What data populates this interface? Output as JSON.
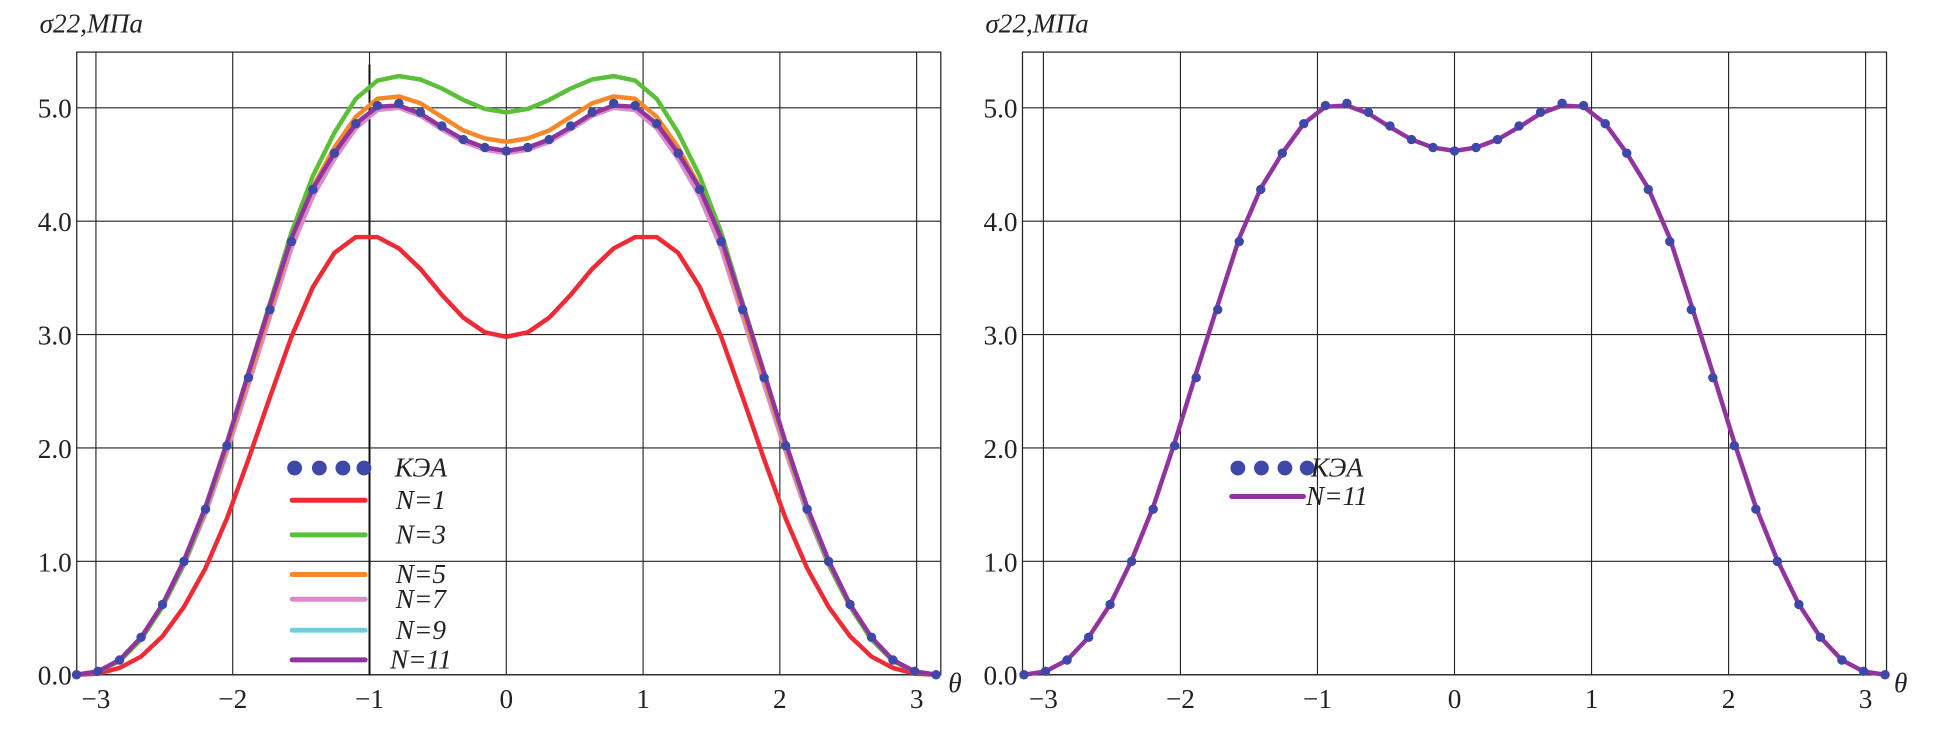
{
  "chart_data": [
    {
      "type": "line",
      "ylabel": "σ22,МПа",
      "xlabel": "θ",
      "xlim": [
        -3.1416,
        3.1416
      ],
      "ylim": [
        0,
        5.5
      ],
      "xticks": [
        "−3",
        "−2",
        "−1",
        "0",
        "1",
        "2",
        "3"
      ],
      "xtick_values": [
        -3,
        -2,
        -1,
        0,
        1,
        2,
        3
      ],
      "yticks": [
        "0.0",
        "1.0",
        "2.0",
        "3.0",
        "4.0",
        "5.0"
      ],
      "ytick_values": [
        0,
        1,
        2,
        3,
        4,
        5
      ],
      "grid": true,
      "legend_position": "lower-left",
      "x": [
        -3.142,
        -2.985,
        -2.827,
        -2.67,
        -2.513,
        -2.356,
        -2.199,
        -2.042,
        -1.885,
        -1.728,
        -1.571,
        -1.414,
        -1.257,
        -1.1,
        -0.942,
        -0.785,
        -0.628,
        -0.471,
        -0.314,
        -0.157,
        0,
        0.157,
        0.314,
        0.471,
        0.628,
        0.785,
        0.942,
        1.1,
        1.257,
        1.414,
        1.571,
        1.728,
        1.885,
        2.042,
        2.199,
        2.356,
        2.513,
        2.67,
        2.827,
        2.985,
        3.142
      ],
      "series": [
        {
          "name": "N=1",
          "style": "line",
          "color": "#ee2a35",
          "values": [
            0,
            0.01,
            0.06,
            0.16,
            0.34,
            0.6,
            0.94,
            1.38,
            1.9,
            2.45,
            2.98,
            3.42,
            3.72,
            3.86,
            3.86,
            3.76,
            3.58,
            3.35,
            3.15,
            3.02,
            2.98,
            3.02,
            3.15,
            3.35,
            3.58,
            3.76,
            3.86,
            3.86,
            3.72,
            3.42,
            2.98,
            2.45,
            1.9,
            1.38,
            0.94,
            0.6,
            0.34,
            0.16,
            0.06,
            0.01,
            0
          ]
        },
        {
          "name": "N=9",
          "style": "line",
          "color": "#6ccfdc",
          "values": [
            0,
            0.03,
            0.13,
            0.32,
            0.61,
            0.98,
            1.43,
            1.98,
            2.57,
            3.17,
            3.77,
            4.23,
            4.56,
            4.83,
            4.99,
            5.01,
            4.94,
            4.82,
            4.71,
            4.65,
            4.62,
            4.65,
            4.71,
            4.82,
            4.94,
            5.01,
            4.99,
            4.83,
            4.56,
            4.23,
            3.77,
            3.17,
            2.57,
            1.98,
            1.43,
            0.98,
            0.61,
            0.32,
            0.13,
            0.03,
            0
          ]
        },
        {
          "name": "N=7",
          "style": "line",
          "color": "#d98bcb",
          "values": [
            0,
            0.03,
            0.12,
            0.32,
            0.6,
            0.97,
            1.42,
            1.97,
            2.56,
            3.16,
            3.76,
            4.22,
            4.55,
            4.82,
            4.98,
            5.0,
            4.93,
            4.81,
            4.7,
            4.63,
            4.6,
            4.63,
            4.7,
            4.81,
            4.93,
            5.0,
            4.98,
            4.82,
            4.55,
            4.22,
            3.76,
            3.16,
            2.56,
            1.97,
            1.42,
            0.97,
            0.6,
            0.32,
            0.12,
            0.03,
            0
          ]
        },
        {
          "name": "N=5",
          "style": "line",
          "color": "#f5892a",
          "values": [
            0,
            0.03,
            0.13,
            0.33,
            0.62,
            1.0,
            1.46,
            2.02,
            2.62,
            3.22,
            3.84,
            4.3,
            4.65,
            4.92,
            5.08,
            5.1,
            5.04,
            4.92,
            4.8,
            4.73,
            4.7,
            4.73,
            4.8,
            4.92,
            5.04,
            5.1,
            5.08,
            4.92,
            4.65,
            4.3,
            3.84,
            3.22,
            2.62,
            2.02,
            1.46,
            1.0,
            0.62,
            0.33,
            0.13,
            0.03,
            0
          ]
        },
        {
          "name": "N=3",
          "style": "line",
          "color": "#5cbf3a",
          "values": [
            0,
            0.03,
            0.12,
            0.31,
            0.6,
            0.98,
            1.46,
            2.04,
            2.66,
            3.28,
            3.9,
            4.4,
            4.78,
            5.08,
            5.24,
            5.28,
            5.25,
            5.17,
            5.07,
            4.99,
            4.96,
            4.99,
            5.07,
            5.17,
            5.25,
            5.28,
            5.24,
            5.08,
            4.78,
            4.4,
            3.9,
            3.28,
            2.66,
            2.04,
            1.46,
            0.98,
            0.6,
            0.31,
            0.12,
            0.03,
            0
          ]
        },
        {
          "name": "N=11",
          "style": "line",
          "color": "#9234a0",
          "values": [
            0,
            0.03,
            0.13,
            0.33,
            0.62,
            1.01,
            1.48,
            2.05,
            2.66,
            3.26,
            3.85,
            4.29,
            4.6,
            4.86,
            5.01,
            5.02,
            4.95,
            4.83,
            4.72,
            4.65,
            4.62,
            4.65,
            4.72,
            4.83,
            4.95,
            5.02,
            5.01,
            4.86,
            4.6,
            4.29,
            3.85,
            3.26,
            2.66,
            2.05,
            1.48,
            1.01,
            0.62,
            0.33,
            0.13,
            0.03,
            0
          ]
        },
        {
          "name": "КЭА",
          "style": "dots",
          "color": "#3f48a8",
          "values": [
            0,
            0.03,
            0.13,
            0.33,
            0.62,
            1.0,
            1.46,
            2.02,
            2.62,
            3.22,
            3.82,
            4.28,
            4.6,
            4.86,
            5.02,
            5.04,
            4.96,
            4.84,
            4.72,
            4.65,
            4.62,
            4.65,
            4.72,
            4.84,
            4.96,
            5.04,
            5.02,
            4.86,
            4.6,
            4.28,
            3.82,
            3.22,
            2.62,
            2.02,
            1.46,
            1.0,
            0.62,
            0.33,
            0.13,
            0.03,
            0
          ]
        }
      ],
      "legend_order": [
        "КЭА",
        "N=1",
        "N=3",
        "N=5",
        "N=7",
        "N=9",
        "N=11"
      ]
    },
    {
      "type": "line",
      "ylabel": "σ22,МПа",
      "xlabel": "θ",
      "xlim": [
        -3.1416,
        3.1416
      ],
      "ylim": [
        0,
        5.5
      ],
      "xticks": [
        "−3",
        "−2",
        "−1",
        "0",
        "1",
        "2",
        "3"
      ],
      "xtick_values": [
        -3,
        -2,
        -1,
        0,
        1,
        2,
        3
      ],
      "yticks": [
        "0.0",
        "1.0",
        "2.0",
        "3.0",
        "4.0",
        "5.0"
      ],
      "ytick_values": [
        0,
        1,
        2,
        3,
        4,
        5
      ],
      "grid": true,
      "legend_position": "center-left",
      "x": [
        -3.142,
        -2.985,
        -2.827,
        -2.67,
        -2.513,
        -2.356,
        -2.199,
        -2.042,
        -1.885,
        -1.728,
        -1.571,
        -1.414,
        -1.257,
        -1.1,
        -0.942,
        -0.785,
        -0.628,
        -0.471,
        -0.314,
        -0.157,
        0,
        0.157,
        0.314,
        0.471,
        0.628,
        0.785,
        0.942,
        1.1,
        1.257,
        1.414,
        1.571,
        1.728,
        1.885,
        2.042,
        2.199,
        2.356,
        2.513,
        2.67,
        2.827,
        2.985,
        3.142
      ],
      "series": [
        {
          "name": "N=11",
          "style": "line",
          "color": "#9234a0",
          "values": [
            0,
            0.03,
            0.13,
            0.33,
            0.62,
            1.01,
            1.48,
            2.05,
            2.66,
            3.26,
            3.85,
            4.29,
            4.6,
            4.86,
            5.01,
            5.02,
            4.95,
            4.83,
            4.72,
            4.65,
            4.62,
            4.65,
            4.72,
            4.83,
            4.95,
            5.02,
            5.01,
            4.86,
            4.6,
            4.29,
            3.85,
            3.26,
            2.66,
            2.05,
            1.48,
            1.01,
            0.62,
            0.33,
            0.13,
            0.03,
            0
          ]
        },
        {
          "name": "КЭА",
          "style": "dots",
          "color": "#3f48a8",
          "values": [
            0,
            0.03,
            0.13,
            0.33,
            0.62,
            1.0,
            1.46,
            2.02,
            2.62,
            3.22,
            3.82,
            4.28,
            4.6,
            4.86,
            5.02,
            5.04,
            4.96,
            4.84,
            4.72,
            4.65,
            4.62,
            4.65,
            4.72,
            4.84,
            4.96,
            5.04,
            5.02,
            4.86,
            4.6,
            4.28,
            3.82,
            3.22,
            2.62,
            2.02,
            1.46,
            1.0,
            0.62,
            0.33,
            0.13,
            0.03,
            0
          ]
        }
      ],
      "legend_order": [
        "КЭА",
        "N=11"
      ]
    }
  ]
}
